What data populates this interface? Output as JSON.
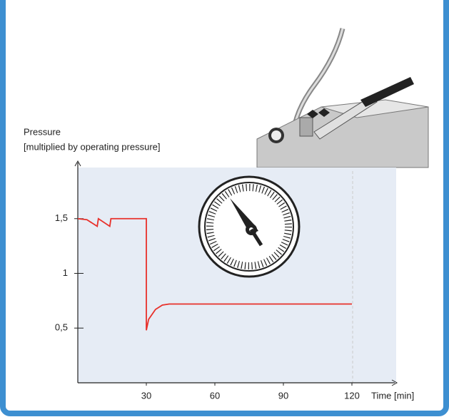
{
  "chart_data": {
    "type": "line",
    "y_label": "Pressure",
    "y_label_note": "[multiplied by operating pressure]",
    "x_label": "Time [min]",
    "xlim": [
      0,
      139
    ],
    "ylim": [
      0,
      2.03
    ],
    "xticks": [
      30,
      60,
      90,
      120
    ],
    "yticks": [
      {
        "value": 0.5,
        "label": "0,5"
      },
      1,
      {
        "value": 1.5,
        "label": "1,5"
      }
    ],
    "grid": false,
    "series": [
      {
        "name": "Pressure",
        "color": "#e8302a",
        "x": [
          0,
          4,
          8.5,
          9,
          14,
          14.5,
          30,
          30,
          31,
          34,
          37,
          40,
          120
        ],
        "values": [
          1.5,
          1.49,
          1.43,
          1.5,
          1.43,
          1.5,
          1.5,
          0.48,
          0.58,
          0.67,
          0.71,
          0.72,
          0.72
        ]
      }
    ]
  }
}
